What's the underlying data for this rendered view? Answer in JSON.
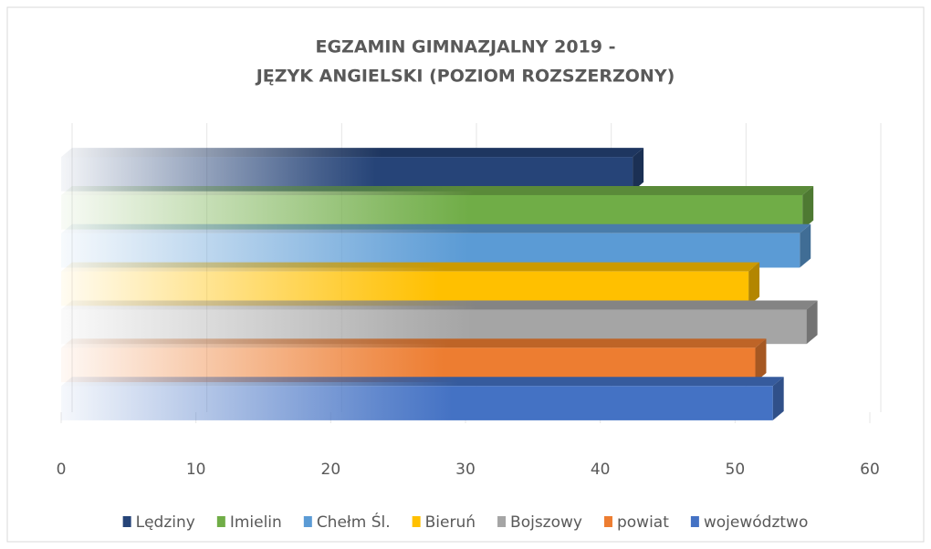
{
  "chart_data": {
    "type": "bar",
    "orientation": "horizontal",
    "title": [
      "EGZAMIN GIMNAZJALNY 2019 -",
      "JĘZYK ANGIELSKI (POZIOM ROZSZERZONY)"
    ],
    "series": [
      {
        "name": "Lędziny",
        "color": "#264478",
        "values": [
          42.4
        ]
      },
      {
        "name": "Imielin",
        "color": "#70ad47",
        "values": [
          55.0
        ]
      },
      {
        "name": "Chełm Śl.",
        "color": "#5b9bd5",
        "values": [
          54.8
        ]
      },
      {
        "name": "Bieruń",
        "color": "#ffc000",
        "values": [
          51.0
        ]
      },
      {
        "name": "Bojszowy",
        "color": "#a5a5a5",
        "values": [
          55.3
        ]
      },
      {
        "name": "powiat",
        "color": "#ed7d31",
        "values": [
          51.5
        ]
      },
      {
        "name": "województwo",
        "color": "#4472c4",
        "values": [
          52.8
        ]
      }
    ],
    "xlim": [
      0,
      60
    ],
    "xticks": [
      0,
      10,
      20,
      30,
      40,
      50,
      60
    ],
    "grid": true,
    "legend": "bottom"
  }
}
